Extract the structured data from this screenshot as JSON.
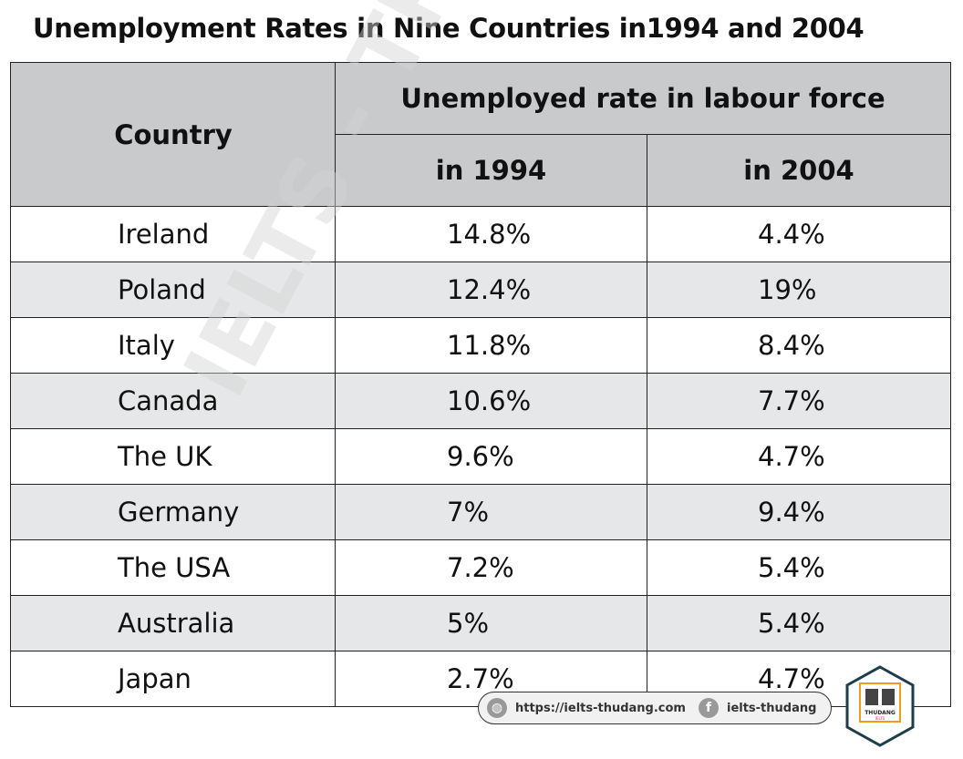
{
  "title": "Unemployment Rates in Nine Countries in1994 and 2004",
  "chart_data": {
    "type": "table",
    "title": "Unemployment Rates in Nine Countries in1994 and 2004",
    "columns": [
      "Country",
      "Unemployed rate in labour force",
      "in 1994",
      "in 2004"
    ],
    "rows": [
      {
        "country": "Ireland",
        "y1994": "14.8%",
        "y2004": "4.4%"
      },
      {
        "country": "Poland",
        "y1994": "12.4%",
        "y2004": "19%"
      },
      {
        "country": "Italy",
        "y1994": "11.8%",
        "y2004": "8.4%"
      },
      {
        "country": "Canada",
        "y1994": "10.6%",
        "y2004": "7.7%"
      },
      {
        "country": "The UK",
        "y1994": "9.6%",
        "y2004": "4.7%"
      },
      {
        "country": "Germany",
        "y1994": "7%",
        "y2004": "9.4%"
      },
      {
        "country": "The USA",
        "y1994": "7.2%",
        "y2004": "5.4%"
      },
      {
        "country": "Australia",
        "y1994": "5%",
        "y2004": "5.4%"
      },
      {
        "country": "Japan",
        "y1994": "2.7%",
        "y2004": "4.7%"
      }
    ]
  },
  "watermark": "IELTS - THƯ ĐẶNG",
  "footer": {
    "website": "https://ielts-thudang.com",
    "facebook": "ielts-thudang",
    "web_icon": "globe-icon",
    "fb_icon": "facebook-icon"
  },
  "logo": {
    "text": "THUDANG",
    "sub": "IELTS"
  }
}
